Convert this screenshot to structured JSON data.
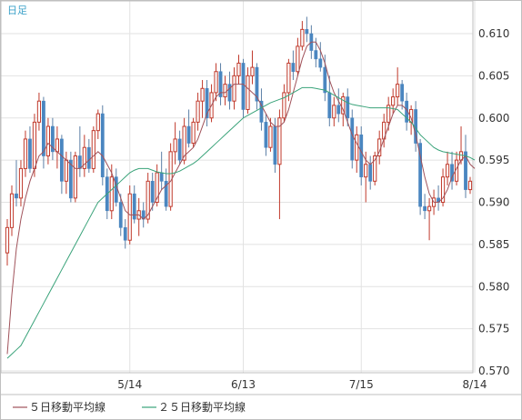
{
  "period_label": "日足",
  "legend": [
    {
      "label": "５日移動平均線",
      "color": "#a0525a"
    },
    {
      "label": "２５日移動平均線",
      "color": "#3aa37a"
    }
  ],
  "colors": {
    "up": "#c0392b",
    "down": "#4a86c0",
    "grid": "#e2e2e2",
    "frame": "#bfbfbf"
  },
  "chart_data": {
    "type": "candlestick",
    "title": "",
    "xlabel": "",
    "ylabel": "",
    "ylim": [
      0.57,
      0.613
    ],
    "y_ticks": [
      "0.610",
      "0.605",
      "0.600",
      "0.595",
      "0.590",
      "0.585",
      "0.580",
      "0.575",
      "0.570"
    ],
    "x_ticks": [
      {
        "label": "5/14",
        "index": 27
      },
      {
        "label": "6/13",
        "index": 52
      },
      {
        "label": "7/15",
        "index": 78
      },
      {
        "label": "8/14",
        "index": 103
      }
    ],
    "grid": true,
    "legend_position": "bottom",
    "ohlc": [
      [
        0.584,
        0.588,
        0.5825,
        0.587
      ],
      [
        0.587,
        0.592,
        0.586,
        0.591
      ],
      [
        0.591,
        0.595,
        0.5895,
        0.5905
      ],
      [
        0.5905,
        0.595,
        0.5895,
        0.594
      ],
      [
        0.594,
        0.5985,
        0.593,
        0.5975
      ],
      [
        0.5975,
        0.599,
        0.5935,
        0.594
      ],
      [
        0.594,
        0.6005,
        0.593,
        0.5995
      ],
      [
        0.5995,
        0.603,
        0.5985,
        0.602
      ],
      [
        0.602,
        0.6025,
        0.594,
        0.5955
      ],
      [
        0.5955,
        0.6,
        0.5945,
        0.599
      ],
      [
        0.599,
        0.6,
        0.595,
        0.596
      ],
      [
        0.596,
        0.599,
        0.594,
        0.5975
      ],
      [
        0.5975,
        0.598,
        0.591,
        0.5925
      ],
      [
        0.5925,
        0.596,
        0.591,
        0.595
      ],
      [
        0.595,
        0.596,
        0.59,
        0.5905
      ],
      [
        0.5905,
        0.596,
        0.59,
        0.5955
      ],
      [
        0.5955,
        0.599,
        0.593,
        0.594
      ],
      [
        0.594,
        0.598,
        0.593,
        0.5965
      ],
      [
        0.5965,
        0.5975,
        0.5935,
        0.594
      ],
      [
        0.594,
        0.599,
        0.5935,
        0.5985
      ],
      [
        0.5985,
        0.601,
        0.5975,
        0.6005
      ],
      [
        0.6005,
        0.6015,
        0.592,
        0.593
      ],
      [
        0.593,
        0.594,
        0.588,
        0.589
      ],
      [
        0.589,
        0.5945,
        0.588,
        0.593
      ],
      [
        0.593,
        0.594,
        0.5895,
        0.59
      ],
      [
        0.59,
        0.591,
        0.586,
        0.587
      ],
      [
        0.587,
        0.588,
        0.5845,
        0.5855
      ],
      [
        0.5855,
        0.592,
        0.585,
        0.591
      ],
      [
        0.591,
        0.592,
        0.5875,
        0.588
      ],
      [
        0.588,
        0.5905,
        0.586,
        0.589
      ],
      [
        0.589,
        0.59,
        0.587,
        0.588
      ],
      [
        0.588,
        0.5935,
        0.5875,
        0.5925
      ],
      [
        0.5925,
        0.5935,
        0.589,
        0.59
      ],
      [
        0.59,
        0.5945,
        0.5895,
        0.5935
      ],
      [
        0.5935,
        0.596,
        0.5915,
        0.5925
      ],
      [
        0.5925,
        0.594,
        0.589,
        0.5895
      ],
      [
        0.5895,
        0.597,
        0.589,
        0.596
      ],
      [
        0.596,
        0.5995,
        0.5945,
        0.5975
      ],
      [
        0.5975,
        0.5985,
        0.5945,
        0.595
      ],
      [
        0.595,
        0.6,
        0.5945,
        0.599
      ],
      [
        0.599,
        0.601,
        0.5965,
        0.597
      ],
      [
        0.597,
        0.6,
        0.5965,
        0.5995
      ],
      [
        0.5995,
        0.603,
        0.5985,
        0.602
      ],
      [
        0.602,
        0.6045,
        0.6,
        0.6035
      ],
      [
        0.6035,
        0.6045,
        0.599,
        0.6
      ],
      [
        0.6,
        0.604,
        0.5995,
        0.603
      ],
      [
        0.603,
        0.6065,
        0.602,
        0.6055
      ],
      [
        0.6055,
        0.6065,
        0.6015,
        0.6025
      ],
      [
        0.6025,
        0.605,
        0.6015,
        0.604
      ],
      [
        0.604,
        0.6055,
        0.601,
        0.602
      ],
      [
        0.602,
        0.606,
        0.601,
        0.605
      ],
      [
        0.605,
        0.6075,
        0.604,
        0.6065
      ],
      [
        0.6065,
        0.607,
        0.6,
        0.601
      ],
      [
        0.601,
        0.606,
        0.6005,
        0.605
      ],
      [
        0.605,
        0.608,
        0.604,
        0.606
      ],
      [
        0.606,
        0.6065,
        0.601,
        0.602
      ],
      [
        0.602,
        0.6035,
        0.5985,
        0.5995
      ],
      [
        0.5995,
        0.6005,
        0.5955,
        0.5965
      ],
      [
        0.5965,
        0.6,
        0.596,
        0.599
      ],
      [
        0.599,
        0.6,
        0.5935,
        0.5945
      ],
      [
        0.5945,
        0.601,
        0.588,
        0.6
      ],
      [
        0.6,
        0.604,
        0.5995,
        0.603
      ],
      [
        0.603,
        0.607,
        0.602,
        0.6065
      ],
      [
        0.6065,
        0.608,
        0.6045,
        0.6055
      ],
      [
        0.6055,
        0.6095,
        0.605,
        0.6085
      ],
      [
        0.6085,
        0.6115,
        0.608,
        0.6105
      ],
      [
        0.6105,
        0.612,
        0.609,
        0.61
      ],
      [
        0.61,
        0.611,
        0.607,
        0.608
      ],
      [
        0.608,
        0.6095,
        0.606,
        0.607
      ],
      [
        0.607,
        0.609,
        0.6055,
        0.606
      ],
      [
        0.606,
        0.6075,
        0.602,
        0.603
      ],
      [
        0.603,
        0.605,
        0.599,
        0.6
      ],
      [
        0.6,
        0.6025,
        0.599,
        0.6015
      ],
      [
        0.6015,
        0.6035,
        0.5995,
        0.6005
      ],
      [
        0.6005,
        0.603,
        0.599,
        0.6025
      ],
      [
        0.6025,
        0.6035,
        0.599,
        0.6
      ],
      [
        0.6,
        0.601,
        0.594,
        0.595
      ],
      [
        0.595,
        0.599,
        0.5935,
        0.598
      ],
      [
        0.598,
        0.599,
        0.592,
        0.593
      ],
      [
        0.593,
        0.596,
        0.59,
        0.5945
      ],
      [
        0.5945,
        0.5955,
        0.5915,
        0.5925
      ],
      [
        0.5925,
        0.596,
        0.592,
        0.5955
      ],
      [
        0.5955,
        0.5985,
        0.5945,
        0.5975
      ],
      [
        0.5975,
        0.6005,
        0.5965,
        0.5995
      ],
      [
        0.5995,
        0.6025,
        0.5985,
        0.6015
      ],
      [
        0.6015,
        0.6035,
        0.6005,
        0.6025
      ],
      [
        0.6025,
        0.606,
        0.6015,
        0.604
      ],
      [
        0.604,
        0.6045,
        0.601,
        0.602
      ],
      [
        0.602,
        0.603,
        0.5985,
        0.5995
      ],
      [
        0.5995,
        0.6015,
        0.598,
        0.601
      ],
      [
        0.601,
        0.602,
        0.596,
        0.597
      ],
      [
        0.597,
        0.5975,
        0.5885,
        0.5895
      ],
      [
        0.5895,
        0.591,
        0.588,
        0.589
      ],
      [
        0.589,
        0.5905,
        0.5855,
        0.5895
      ],
      [
        0.5895,
        0.5915,
        0.5885,
        0.5905
      ],
      [
        0.5905,
        0.592,
        0.589,
        0.59
      ],
      [
        0.59,
        0.594,
        0.5895,
        0.593
      ],
      [
        0.593,
        0.596,
        0.592,
        0.5945
      ],
      [
        0.5945,
        0.596,
        0.5915,
        0.5925
      ],
      [
        0.5925,
        0.596,
        0.592,
        0.595
      ],
      [
        0.595,
        0.599,
        0.5945,
        0.596
      ],
      [
        0.596,
        0.598,
        0.5905,
        0.5915
      ],
      [
        0.5915,
        0.593,
        0.591,
        0.5925
      ]
    ],
    "series": [
      {
        "name": "５日移動平均線",
        "values": [
          0.572,
          0.579,
          0.5845,
          0.588,
          0.5905,
          0.5925,
          0.594,
          0.5955,
          0.596,
          0.597,
          0.5965,
          0.596,
          0.5955,
          0.595,
          0.5945,
          0.594,
          0.594,
          0.5945,
          0.595,
          0.5955,
          0.596,
          0.5955,
          0.5945,
          0.5935,
          0.592,
          0.5905,
          0.589,
          0.5885,
          0.5885,
          0.5885,
          0.588,
          0.5885,
          0.5895,
          0.5905,
          0.5915,
          0.592,
          0.5925,
          0.5935,
          0.5945,
          0.5955,
          0.596,
          0.5965,
          0.5975,
          0.599,
          0.6005,
          0.6015,
          0.6025,
          0.603,
          0.603,
          0.6035,
          0.604,
          0.604,
          0.604,
          0.6035,
          0.603,
          0.6025,
          0.6015,
          0.6005,
          0.5995,
          0.599,
          0.599,
          0.5995,
          0.601,
          0.603,
          0.605,
          0.607,
          0.6085,
          0.609,
          0.609,
          0.608,
          0.6065,
          0.6045,
          0.603,
          0.602,
          0.601,
          0.5995,
          0.598,
          0.597,
          0.596,
          0.595,
          0.5945,
          0.595,
          0.596,
          0.5975,
          0.599,
          0.6005,
          0.6015,
          0.6015,
          0.601,
          0.6,
          0.598,
          0.5955,
          0.593,
          0.591,
          0.59,
          0.59,
          0.5905,
          0.5915,
          0.593,
          0.594,
          0.595,
          0.5955,
          0.5945,
          0.594
        ]
      },
      {
        "name": "２５日移動平均線",
        "values": [
          0.5715,
          0.572,
          0.5725,
          0.573,
          0.574,
          0.575,
          0.576,
          0.577,
          0.578,
          0.579,
          0.58,
          0.581,
          0.582,
          0.583,
          0.584,
          0.585,
          0.586,
          0.587,
          0.588,
          0.589,
          0.59,
          0.5905,
          0.591,
          0.5915,
          0.592,
          0.5925,
          0.593,
          0.5935,
          0.5938,
          0.594,
          0.594,
          0.594,
          0.5938,
          0.5936,
          0.5935,
          0.5934,
          0.5934,
          0.5935,
          0.5937,
          0.594,
          0.5943,
          0.5946,
          0.595,
          0.5955,
          0.596,
          0.5965,
          0.597,
          0.5975,
          0.598,
          0.5985,
          0.599,
          0.5995,
          0.6,
          0.6003,
          0.6006,
          0.6009,
          0.6012,
          0.6015,
          0.6018,
          0.602,
          0.6022,
          0.6024,
          0.6027,
          0.603,
          0.6033,
          0.6036,
          0.6036,
          0.6036,
          0.6035,
          0.6034,
          0.6033,
          0.603,
          0.6027,
          0.6024,
          0.6021,
          0.6018,
          0.6016,
          0.6015,
          0.6014,
          0.6013,
          0.6012,
          0.6012,
          0.6012,
          0.6012,
          0.6012,
          0.6011,
          0.601,
          0.6005,
          0.6,
          0.5995,
          0.5988,
          0.598,
          0.5975,
          0.597,
          0.5965,
          0.5962,
          0.596,
          0.5959,
          0.5958,
          0.5957,
          0.5956,
          0.5955,
          0.5953,
          0.595
        ]
      }
    ]
  }
}
